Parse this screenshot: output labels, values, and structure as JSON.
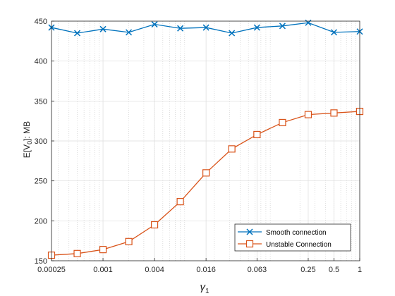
{
  "chart_data": {
    "type": "line",
    "xscale": "log2",
    "x": [
      0.00025,
      0.0005,
      0.001,
      0.002,
      0.004,
      0.008,
      0.016,
      0.032,
      0.063,
      0.125,
      0.25,
      0.5,
      1
    ],
    "xticks": [
      0.00025,
      0.001,
      0.004,
      0.016,
      0.063,
      0.25,
      0.5,
      1
    ],
    "xtick_labels": [
      "0.00025",
      "0.001",
      "0.004",
      "0.016",
      "0.063",
      "0.25",
      "0.5",
      "1"
    ],
    "yticks": [
      150,
      200,
      250,
      300,
      350,
      400,
      450
    ],
    "xlim": [
      0.00025,
      1
    ],
    "ylim": [
      150,
      450
    ],
    "xlabel": "γ",
    "xlabel_sub": "1",
    "ylabel": "E[V",
    "ylabel_sub": "0",
    "ylabel_suffix": "]: MB",
    "grid": true,
    "legend_position": "bottom-right",
    "series": [
      {
        "name": "Smooth connection",
        "color": "#0072BD",
        "marker": "x",
        "values": [
          442,
          435,
          440,
          436,
          446,
          441,
          442,
          435,
          442,
          444,
          448,
          436,
          437
        ]
      },
      {
        "name": "Unstable Connection",
        "color": "#D95319",
        "marker": "square",
        "values": [
          157,
          159,
          164,
          174,
          195,
          224,
          260,
          290,
          308,
          323,
          333,
          335,
          337
        ]
      }
    ]
  }
}
